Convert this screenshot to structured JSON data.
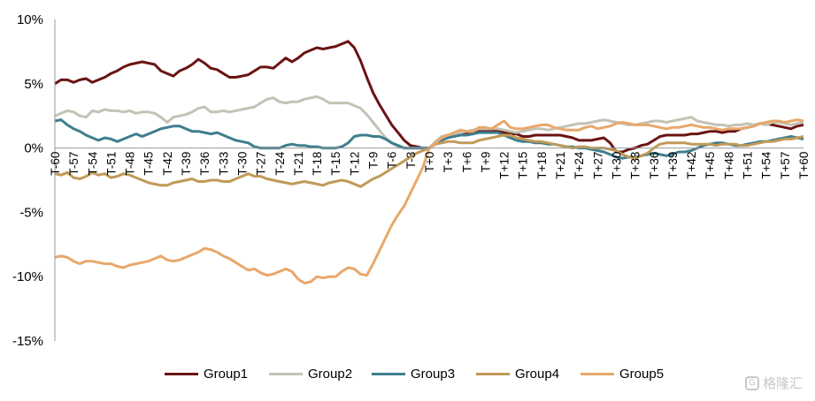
{
  "chart_data": {
    "type": "line",
    "ylim": [
      -15,
      10
    ],
    "yticks": [
      10,
      5,
      0,
      -5,
      -10,
      -15
    ],
    "ytick_labels": [
      "10%",
      "5%",
      "0%",
      "-5%",
      "-10%",
      "-15%"
    ],
    "x": [
      -60,
      -59,
      -58,
      -57,
      -56,
      -55,
      -54,
      -53,
      -52,
      -51,
      -50,
      -49,
      -48,
      -47,
      -46,
      -45,
      -44,
      -43,
      -42,
      -41,
      -40,
      -39,
      -38,
      -37,
      -36,
      -35,
      -34,
      -33,
      -32,
      -31,
      -30,
      -29,
      -28,
      -27,
      -26,
      -25,
      -24,
      -23,
      -22,
      -21,
      -20,
      -19,
      -18,
      -17,
      -16,
      -15,
      -14,
      -13,
      -12,
      -11,
      -10,
      -9,
      -8,
      -7,
      -6,
      -5,
      -4,
      -3,
      -2,
      -1,
      0,
      1,
      2,
      3,
      4,
      5,
      6,
      7,
      8,
      9,
      10,
      11,
      12,
      13,
      14,
      15,
      16,
      17,
      18,
      19,
      20,
      21,
      22,
      23,
      24,
      25,
      26,
      27,
      28,
      29,
      30,
      31,
      32,
      33,
      34,
      35,
      36,
      37,
      38,
      39,
      40,
      41,
      42,
      43,
      44,
      45,
      46,
      47,
      48,
      49,
      50,
      51,
      52,
      53,
      54,
      55,
      56,
      57,
      58,
      59,
      60
    ],
    "xtick_labels": [
      "T-60",
      "T-57",
      "T-54",
      "T-51",
      "T-48",
      "T-45",
      "T-42",
      "T-39",
      "T-36",
      "T-33",
      "T-30",
      "T-27",
      "T-24",
      "T-21",
      "T-18",
      "T-15",
      "T-12",
      "T-9",
      "T-6",
      "T-3",
      "T+0",
      "T+3",
      "T+6",
      "T+9",
      "T+12",
      "T+15",
      "T+18",
      "T+21",
      "T+24",
      "T+27",
      "T+30",
      "T+33",
      "T+36",
      "T+39",
      "T+42",
      "T+45",
      "T+48",
      "T+51",
      "T+54",
      "T+57",
      "T+60"
    ],
    "grid": false,
    "legend_position": "bottom",
    "series": [
      {
        "name": "Group1",
        "color": "#6b1313",
        "values": [
          5.0,
          5.3,
          5.3,
          5.1,
          5.3,
          5.4,
          5.1,
          5.3,
          5.5,
          5.8,
          6.0,
          6.3,
          6.5,
          6.6,
          6.7,
          6.6,
          6.5,
          6.0,
          5.8,
          5.6,
          6.0,
          6.2,
          6.5,
          6.9,
          6.6,
          6.2,
          6.1,
          5.8,
          5.5,
          5.5,
          5.6,
          5.7,
          6.0,
          6.3,
          6.3,
          6.2,
          6.6,
          7.0,
          6.7,
          7.0,
          7.4,
          7.6,
          7.8,
          7.7,
          7.8,
          7.9,
          8.1,
          8.3,
          7.8,
          6.8,
          5.5,
          4.3,
          3.4,
          2.6,
          1.8,
          1.2,
          0.6,
          0.2,
          0.1,
          0.0,
          0.0,
          0.4,
          0.8,
          1.0,
          1.1,
          1.0,
          1.1,
          1.1,
          1.3,
          1.3,
          1.3,
          1.4,
          1.2,
          1.1,
          1.1,
          0.9,
          0.9,
          1.0,
          1.0,
          1.0,
          1.0,
          1.0,
          0.9,
          0.8,
          0.6,
          0.6,
          0.6,
          0.7,
          0.8,
          0.4,
          -0.3,
          -0.3,
          -0.1,
          0.0,
          0.2,
          0.3,
          0.6,
          0.9,
          1.0,
          1.0,
          1.0,
          1.0,
          1.1,
          1.1,
          1.2,
          1.3,
          1.3,
          1.2,
          1.3,
          1.3,
          1.5,
          1.6,
          1.7,
          1.9,
          1.9,
          1.8,
          1.7,
          1.6,
          1.5,
          1.7,
          1.8
        ]
      },
      {
        "name": "Group2",
        "color": "#c4c2b4",
        "values": [
          2.5,
          2.7,
          2.9,
          2.8,
          2.5,
          2.4,
          2.9,
          2.8,
          3.0,
          2.9,
          2.9,
          2.8,
          2.9,
          2.7,
          2.8,
          2.8,
          2.7,
          2.4,
          2.0,
          2.4,
          2.5,
          2.6,
          2.8,
          3.1,
          3.2,
          2.8,
          2.8,
          2.9,
          2.8,
          2.9,
          3.0,
          3.1,
          3.2,
          3.5,
          3.8,
          3.9,
          3.6,
          3.5,
          3.6,
          3.6,
          3.8,
          3.9,
          4.0,
          3.8,
          3.5,
          3.5,
          3.5,
          3.5,
          3.3,
          3.1,
          2.6,
          2.0,
          1.4,
          0.8,
          0.4,
          0.1,
          0.0,
          0.0,
          0.0,
          0.0,
          0.0,
          0.5,
          0.9,
          1.0,
          1.1,
          1.2,
          1.3,
          1.4,
          1.5,
          1.5,
          1.5,
          1.5,
          1.4,
          1.3,
          1.2,
          1.3,
          1.4,
          1.5,
          1.5,
          1.4,
          1.5,
          1.6,
          1.7,
          1.8,
          1.9,
          1.9,
          2.0,
          2.1,
          2.2,
          2.1,
          2.0,
          1.9,
          1.8,
          1.8,
          1.9,
          2.0,
          2.1,
          2.1,
          2.0,
          2.1,
          2.2,
          2.3,
          2.4,
          2.1,
          2.0,
          1.9,
          1.8,
          1.8,
          1.7,
          1.8,
          1.8,
          1.9,
          1.8,
          1.9,
          1.8,
          2.0,
          2.0,
          1.9,
          1.8,
          1.9,
          2.0
        ]
      },
      {
        "name": "Group3",
        "color": "#3e7e8e",
        "values": [
          2.1,
          2.2,
          1.8,
          1.5,
          1.3,
          1.0,
          0.8,
          0.6,
          0.8,
          0.7,
          0.5,
          0.7,
          0.9,
          1.1,
          0.9,
          1.1,
          1.3,
          1.5,
          1.6,
          1.7,
          1.7,
          1.5,
          1.3,
          1.3,
          1.2,
          1.1,
          1.2,
          1.0,
          0.8,
          0.6,
          0.5,
          0.4,
          0.1,
          0.0,
          0.0,
          0.0,
          0.0,
          0.2,
          0.3,
          0.2,
          0.2,
          0.1,
          0.1,
          0.0,
          0.0,
          0.0,
          0.1,
          0.4,
          0.9,
          1.0,
          1.0,
          0.9,
          0.9,
          0.7,
          0.4,
          0.2,
          0.0,
          0.0,
          0.0,
          0.0,
          0.0,
          0.3,
          0.6,
          0.8,
          0.9,
          1.0,
          1.0,
          1.1,
          1.2,
          1.2,
          1.2,
          1.2,
          1.0,
          0.8,
          0.6,
          0.5,
          0.5,
          0.4,
          0.4,
          0.3,
          0.3,
          0.2,
          0.1,
          0.1,
          0.0,
          0.0,
          -0.1,
          -0.2,
          -0.3,
          -0.5,
          -0.7,
          -0.8,
          -0.7,
          -0.7,
          -0.6,
          -0.5,
          -0.4,
          -0.5,
          -0.6,
          -0.5,
          -0.3,
          -0.3,
          -0.2,
          0.0,
          0.2,
          0.3,
          0.4,
          0.4,
          0.3,
          0.2,
          0.2,
          0.3,
          0.4,
          0.5,
          0.5,
          0.6,
          0.7,
          0.8,
          0.9,
          0.8,
          0.7
        ]
      },
      {
        "name": "Group4",
        "color": "#c09a58",
        "values": [
          -2.0,
          -2.1,
          -1.9,
          -2.3,
          -2.4,
          -2.2,
          -1.9,
          -2.1,
          -2.0,
          -2.3,
          -2.2,
          -2.0,
          -2.1,
          -2.3,
          -2.5,
          -2.7,
          -2.8,
          -2.9,
          -2.9,
          -2.7,
          -2.6,
          -2.5,
          -2.4,
          -2.6,
          -2.6,
          -2.5,
          -2.5,
          -2.6,
          -2.6,
          -2.4,
          -2.2,
          -2.0,
          -2.2,
          -2.2,
          -2.4,
          -2.5,
          -2.6,
          -2.7,
          -2.8,
          -2.7,
          -2.6,
          -2.7,
          -2.8,
          -2.9,
          -2.7,
          -2.6,
          -2.5,
          -2.6,
          -2.8,
          -3.0,
          -2.7,
          -2.4,
          -2.2,
          -1.9,
          -1.6,
          -1.3,
          -1.0,
          -0.7,
          -0.4,
          -0.2,
          0.0,
          0.3,
          0.4,
          0.5,
          0.5,
          0.4,
          0.4,
          0.4,
          0.6,
          0.7,
          0.8,
          0.9,
          1.0,
          1.0,
          0.8,
          0.7,
          0.6,
          0.5,
          0.5,
          0.4,
          0.3,
          0.2,
          0.1,
          0.0,
          0.1,
          0.1,
          0.0,
          0.0,
          0.0,
          -0.1,
          -0.2,
          -0.5,
          -0.7,
          -0.8,
          -0.6,
          -0.4,
          0.0,
          0.3,
          0.4,
          0.4,
          0.4,
          0.4,
          0.3,
          0.3,
          0.3,
          0.3,
          0.2,
          0.3,
          0.3,
          0.3,
          0.2,
          0.2,
          0.3,
          0.4,
          0.5,
          0.5,
          0.6,
          0.7,
          0.7,
          0.8,
          0.9
        ]
      },
      {
        "name": "Group5",
        "color": "#e8a86b",
        "values": [
          -8.5,
          -8.4,
          -8.5,
          -8.8,
          -9.0,
          -8.8,
          -8.8,
          -8.9,
          -9.0,
          -9.0,
          -9.2,
          -9.3,
          -9.1,
          -9.0,
          -8.9,
          -8.8,
          -8.6,
          -8.4,
          -8.7,
          -8.8,
          -8.7,
          -8.5,
          -8.3,
          -8.1,
          -7.8,
          -7.9,
          -8.1,
          -8.4,
          -8.6,
          -8.9,
          -9.2,
          -9.5,
          -9.4,
          -9.7,
          -9.9,
          -9.8,
          -9.6,
          -9.4,
          -9.6,
          -10.2,
          -10.5,
          -10.4,
          -10.0,
          -10.1,
          -10.0,
          -10.0,
          -9.6,
          -9.3,
          -9.4,
          -9.8,
          -9.9,
          -9.0,
          -8.0,
          -7.0,
          -6.0,
          -5.2,
          -4.5,
          -3.5,
          -2.5,
          -1.5,
          0.0,
          0.4,
          0.8,
          1.0,
          1.2,
          1.4,
          1.3,
          1.3,
          1.6,
          1.6,
          1.5,
          1.8,
          2.1,
          1.6,
          1.5,
          1.5,
          1.6,
          1.7,
          1.8,
          1.8,
          1.6,
          1.5,
          1.4,
          1.4,
          1.4,
          1.6,
          1.7,
          1.5,
          1.6,
          1.7,
          1.9,
          2.0,
          1.9,
          1.8,
          1.8,
          1.8,
          1.7,
          1.6,
          1.5,
          1.6,
          1.6,
          1.7,
          1.8,
          1.7,
          1.6,
          1.6,
          1.5,
          1.4,
          1.5,
          1.5,
          1.5,
          1.6,
          1.7,
          1.9,
          2.0,
          2.1,
          2.1,
          2.0,
          2.1,
          2.2,
          2.1
        ]
      }
    ]
  },
  "watermark": {
    "text": "格隆汇",
    "icon": "brand-logo-icon"
  }
}
